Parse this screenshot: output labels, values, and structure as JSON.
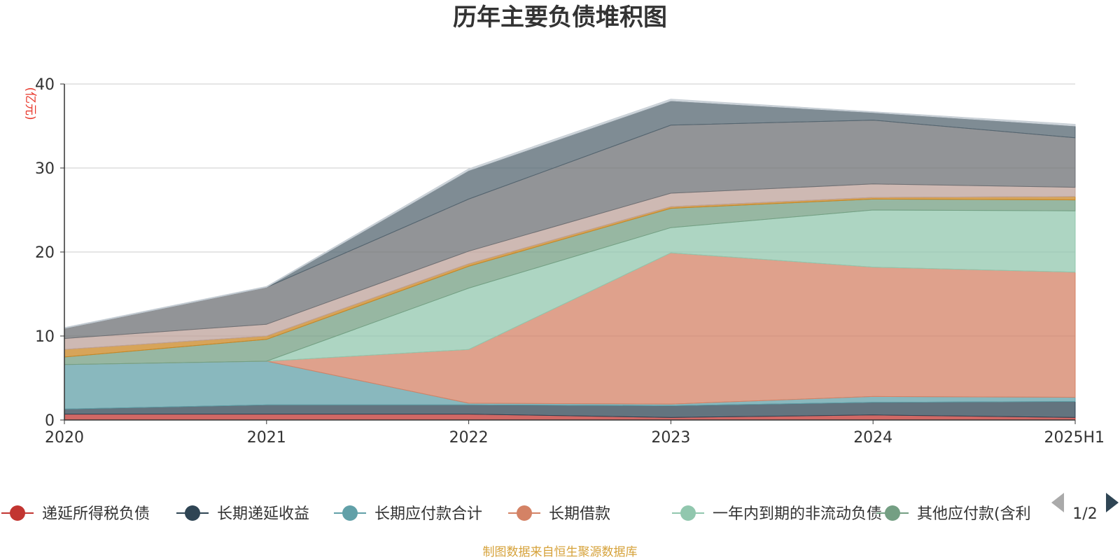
{
  "chart_data": {
    "type": "area",
    "stacked": true,
    "title": "历年主要负债堆积图",
    "unit_label": "(亿元)",
    "categories": [
      "2020",
      "2021",
      "2022",
      "2023",
      "2024",
      "2025H1"
    ],
    "y_ticks": [
      "0",
      "10",
      "20",
      "30",
      "40"
    ],
    "ylim": [
      0,
      40
    ],
    "grid": true,
    "series": [
      {
        "name": "递延所得税负债",
        "color": "#c23531",
        "values": [
          0.7,
          0.7,
          0.7,
          0.3,
          0.6,
          0.3
        ]
      },
      {
        "name": "长期递延收益",
        "color": "#2f4554",
        "values": [
          0.6,
          1.1,
          1.1,
          1.4,
          1.5,
          1.9
        ]
      },
      {
        "name": "长期应付款合计",
        "color": "#61a0a8",
        "values": [
          5.3,
          5.2,
          0.2,
          0.2,
          0.7,
          0.5
        ]
      },
      {
        "name": "长期借款",
        "color": "#d48265",
        "values": [
          0.0,
          0.0,
          6.4,
          18.0,
          15.4,
          14.9
        ]
      },
      {
        "name": "一年内到期的非流动负债",
        "color": "#91c7ae",
        "values": [
          0.0,
          0.0,
          7.3,
          3.0,
          6.8,
          7.3
        ]
      },
      {
        "name": "其他应付款(含利",
        "color": "#749f83",
        "values": [
          0.9,
          2.6,
          2.6,
          2.3,
          1.3,
          1.3
        ]
      },
      {
        "name": "",
        "color": "#ca8622",
        "values": [
          0.9,
          0.4,
          0.3,
          0.2,
          0.2,
          0.4
        ]
      },
      {
        "name": "",
        "color": "#bda29a",
        "values": [
          1.3,
          1.4,
          1.5,
          1.6,
          1.6,
          1.1
        ]
      },
      {
        "name": "",
        "color": "#6e7074",
        "values": [
          1.2,
          4.4,
          6.2,
          8.1,
          7.6,
          5.9
        ]
      },
      {
        "name": "",
        "color": "#546570",
        "values": [
          0.0,
          0.0,
          3.4,
          2.9,
          0.9,
          1.4
        ]
      },
      {
        "name": "",
        "color": "#c4ccd3",
        "values": [
          0.1,
          0.1,
          0.2,
          0.2,
          0.1,
          0.2
        ]
      }
    ],
    "legend_placement": "bottom",
    "legend_page": "1/2"
  },
  "footer": {
    "source": "制图数据来自恒生聚源数据库"
  }
}
